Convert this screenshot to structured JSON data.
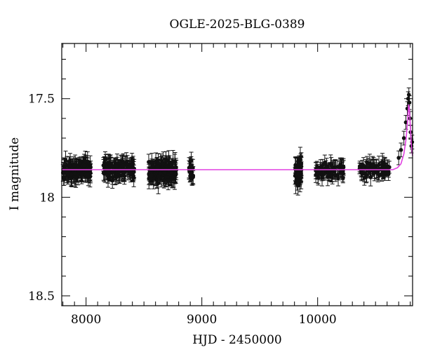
{
  "chart_data": {
    "type": "scatter",
    "title": "OGLE-2025-BLG-0389",
    "xlabel": "HJD - 2450000",
    "ylabel": "I magnitude",
    "xlim": [
      7790,
      10820
    ],
    "ylim": [
      18.55,
      17.22
    ],
    "y_inverted": true,
    "x_ticks": [
      8000,
      9000,
      10000
    ],
    "y_ticks": [
      17.5,
      18,
      18.5
    ],
    "x_minor_step": 100,
    "y_minor_step": 0.1,
    "baseline_mag": 17.86,
    "segments": [
      {
        "x0": 7800,
        "x1": 8040,
        "mean": 17.86,
        "spread": 0.04,
        "n": 140,
        "err": 0.04
      },
      {
        "x0": 8150,
        "x1": 8420,
        "mean": 17.86,
        "spread": 0.04,
        "n": 130,
        "err": 0.04
      },
      {
        "x0": 8540,
        "x1": 8780,
        "mean": 17.87,
        "spread": 0.045,
        "n": 140,
        "err": 0.045
      },
      {
        "x0": 8890,
        "x1": 8925,
        "mean": 17.86,
        "spread": 0.04,
        "n": 20,
        "err": 0.04
      },
      {
        "x0": 9805,
        "x1": 9860,
        "mean": 17.87,
        "spread": 0.05,
        "n": 50,
        "err": 0.05
      },
      {
        "x0": 9980,
        "x1": 10230,
        "mean": 17.86,
        "spread": 0.035,
        "n": 70,
        "err": 0.035
      },
      {
        "x0": 10350,
        "x1": 10620,
        "mean": 17.86,
        "spread": 0.035,
        "n": 70,
        "err": 0.035
      }
    ],
    "event_points": [
      [
        10700,
        17.8
      ],
      [
        10720,
        17.76
      ],
      [
        10745,
        17.7
      ],
      [
        10762,
        17.62
      ],
      [
        10775,
        17.55
      ],
      [
        10782,
        17.5
      ],
      [
        10788,
        17.48
      ],
      [
        10793,
        17.52
      ],
      [
        10798,
        17.6
      ],
      [
        10803,
        17.67
      ],
      [
        10810,
        17.74
      ],
      [
        10816,
        17.72
      ]
    ],
    "model_curve": [
      [
        7790,
        17.86
      ],
      [
        10650,
        17.86
      ],
      [
        10690,
        17.85
      ],
      [
        10720,
        17.83
      ],
      [
        10745,
        17.78
      ],
      [
        10765,
        17.7
      ],
      [
        10778,
        17.6
      ],
      [
        10786,
        17.53
      ],
      [
        10792,
        17.55
      ],
      [
        10800,
        17.63
      ],
      [
        10808,
        17.72
      ],
      [
        10815,
        17.77
      ],
      [
        10820,
        17.79
      ]
    ],
    "colors": {
      "points": "#111111",
      "model": "#e040e0",
      "axes": "#000000"
    }
  }
}
